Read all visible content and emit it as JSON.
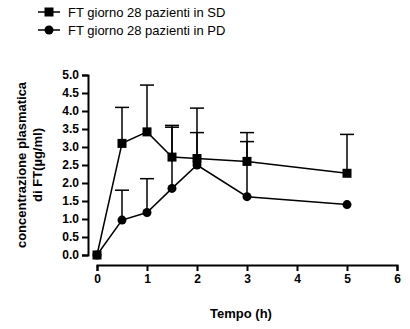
{
  "chart_data": {
    "type": "line",
    "x_label": "Tempo (h)",
    "y_label": [
      "concentrazione plasmatica",
      "di FT(µg/ml)"
    ],
    "x": [
      0,
      0.5,
      1,
      1.5,
      2,
      3,
      5
    ],
    "xlim": [
      0,
      6
    ],
    "xticks": [
      0,
      1,
      2,
      3,
      4,
      5,
      6
    ],
    "ylim": [
      0,
      5
    ],
    "yticks": [
      {
        "value": 0,
        "label": "0.0"
      },
      {
        "value": 0.5,
        "label": "0.5"
      },
      {
        "value": 1,
        "label": "1.0"
      },
      {
        "value": 1.5,
        "label": "1.5"
      },
      {
        "value": 2,
        "label": "2.0"
      },
      {
        "value": 2.5,
        "label": "2.5"
      },
      {
        "value": 3,
        "label": "3.0"
      },
      {
        "value": 3.5,
        "label": "3.5"
      },
      {
        "value": 4,
        "label": "4.0"
      },
      {
        "value": 4.5,
        "label": "4.5"
      },
      {
        "value": 5,
        "label": "5.0"
      }
    ],
    "legend": "top-left",
    "grid": false,
    "series": [
      {
        "name": "FT giorno 28 pazienti in SD",
        "color": "#000000",
        "marker": "square",
        "line_style": "solid",
        "values": [
          0,
          3.1,
          3.42,
          2.72,
          2.68,
          2.6,
          2.27
        ],
        "errors": [
          null,
          1.0,
          1.3,
          0.88,
          1.4,
          0.8,
          1.08
        ]
      },
      {
        "name": "FT giorno 28 pazienti in PD",
        "color": "#000000",
        "marker": "circle",
        "line_style": "solid",
        "values": [
          0,
          0.97,
          1.18,
          1.85,
          2.5,
          1.62,
          1.4
        ],
        "errors": [
          null,
          0.83,
          0.94,
          1.7,
          0.9,
          1.53,
          null
        ]
      }
    ]
  }
}
